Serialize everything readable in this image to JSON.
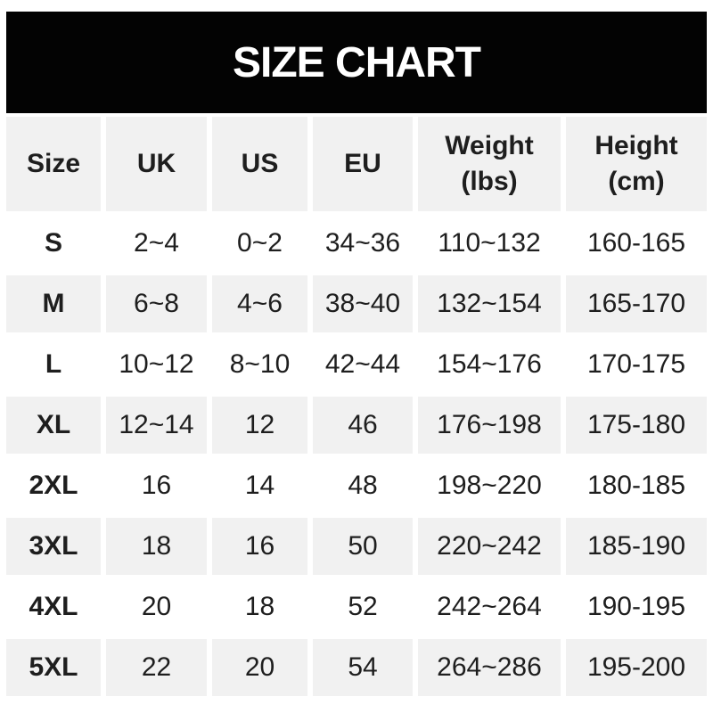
{
  "banner": {
    "title": "SIZE CHART",
    "bg_color": "#030303",
    "text_color": "#ffffff"
  },
  "colors": {
    "row_alt_bg": "#f1f1f1",
    "row_bg": "#ffffff",
    "text": "#1e1e1e",
    "page_bg": "#ffffff"
  },
  "header": {
    "size": "Size",
    "uk": "UK",
    "us": "US",
    "eu": "EU",
    "weight": "Weight\n(lbs)",
    "height": "Height\n(cm)"
  },
  "rows": [
    {
      "size": "S",
      "uk": "2~4",
      "us": "0~2",
      "eu": "34~36",
      "weight": "110~132",
      "height": "160-165"
    },
    {
      "size": "M",
      "uk": "6~8",
      "us": "4~6",
      "eu": "38~40",
      "weight": "132~154",
      "height": "165-170"
    },
    {
      "size": "L",
      "uk": "10~12",
      "us": "8~10",
      "eu": "42~44",
      "weight": "154~176",
      "height": "170-175"
    },
    {
      "size": "XL",
      "uk": "12~14",
      "us": "12",
      "eu": "46",
      "weight": "176~198",
      "height": "175-180"
    },
    {
      "size": "2XL",
      "uk": "16",
      "us": "14",
      "eu": "48",
      "weight": "198~220",
      "height": "180-185"
    },
    {
      "size": "3XL",
      "uk": "18",
      "us": "16",
      "eu": "50",
      "weight": "220~242",
      "height": "185-190"
    },
    {
      "size": "4XL",
      "uk": "20",
      "us": "18",
      "eu": "52",
      "weight": "242~264",
      "height": "190-195"
    },
    {
      "size": "5XL",
      "uk": "22",
      "us": "20",
      "eu": "54",
      "weight": "264~286",
      "height": "195-200"
    }
  ],
  "chart_data": {
    "type": "table",
    "title": "SIZE CHART",
    "columns": [
      "Size",
      "UK",
      "US",
      "EU",
      "Weight (lbs)",
      "Height (cm)"
    ],
    "rows": [
      [
        "S",
        "2~4",
        "0~2",
        "34~36",
        "110~132",
        "160-165"
      ],
      [
        "M",
        "6~8",
        "4~6",
        "38~40",
        "132~154",
        "165-170"
      ],
      [
        "L",
        "10~12",
        "8~10",
        "42~44",
        "154~176",
        "170-175"
      ],
      [
        "XL",
        "12~14",
        "12",
        "46",
        "176~198",
        "175-180"
      ],
      [
        "2XL",
        "16",
        "14",
        "48",
        "198~220",
        "180-185"
      ],
      [
        "3XL",
        "18",
        "16",
        "50",
        "220~242",
        "185-190"
      ],
      [
        "4XL",
        "20",
        "18",
        "52",
        "242~264",
        "190-195"
      ],
      [
        "5XL",
        "22",
        "20",
        "54",
        "264~286",
        "195-200"
      ]
    ],
    "layout": {
      "alternating_row_shading": true,
      "shaded_rows": [
        "header",
        "M",
        "XL",
        "3XL",
        "5XL"
      ],
      "header_position": "top"
    }
  }
}
